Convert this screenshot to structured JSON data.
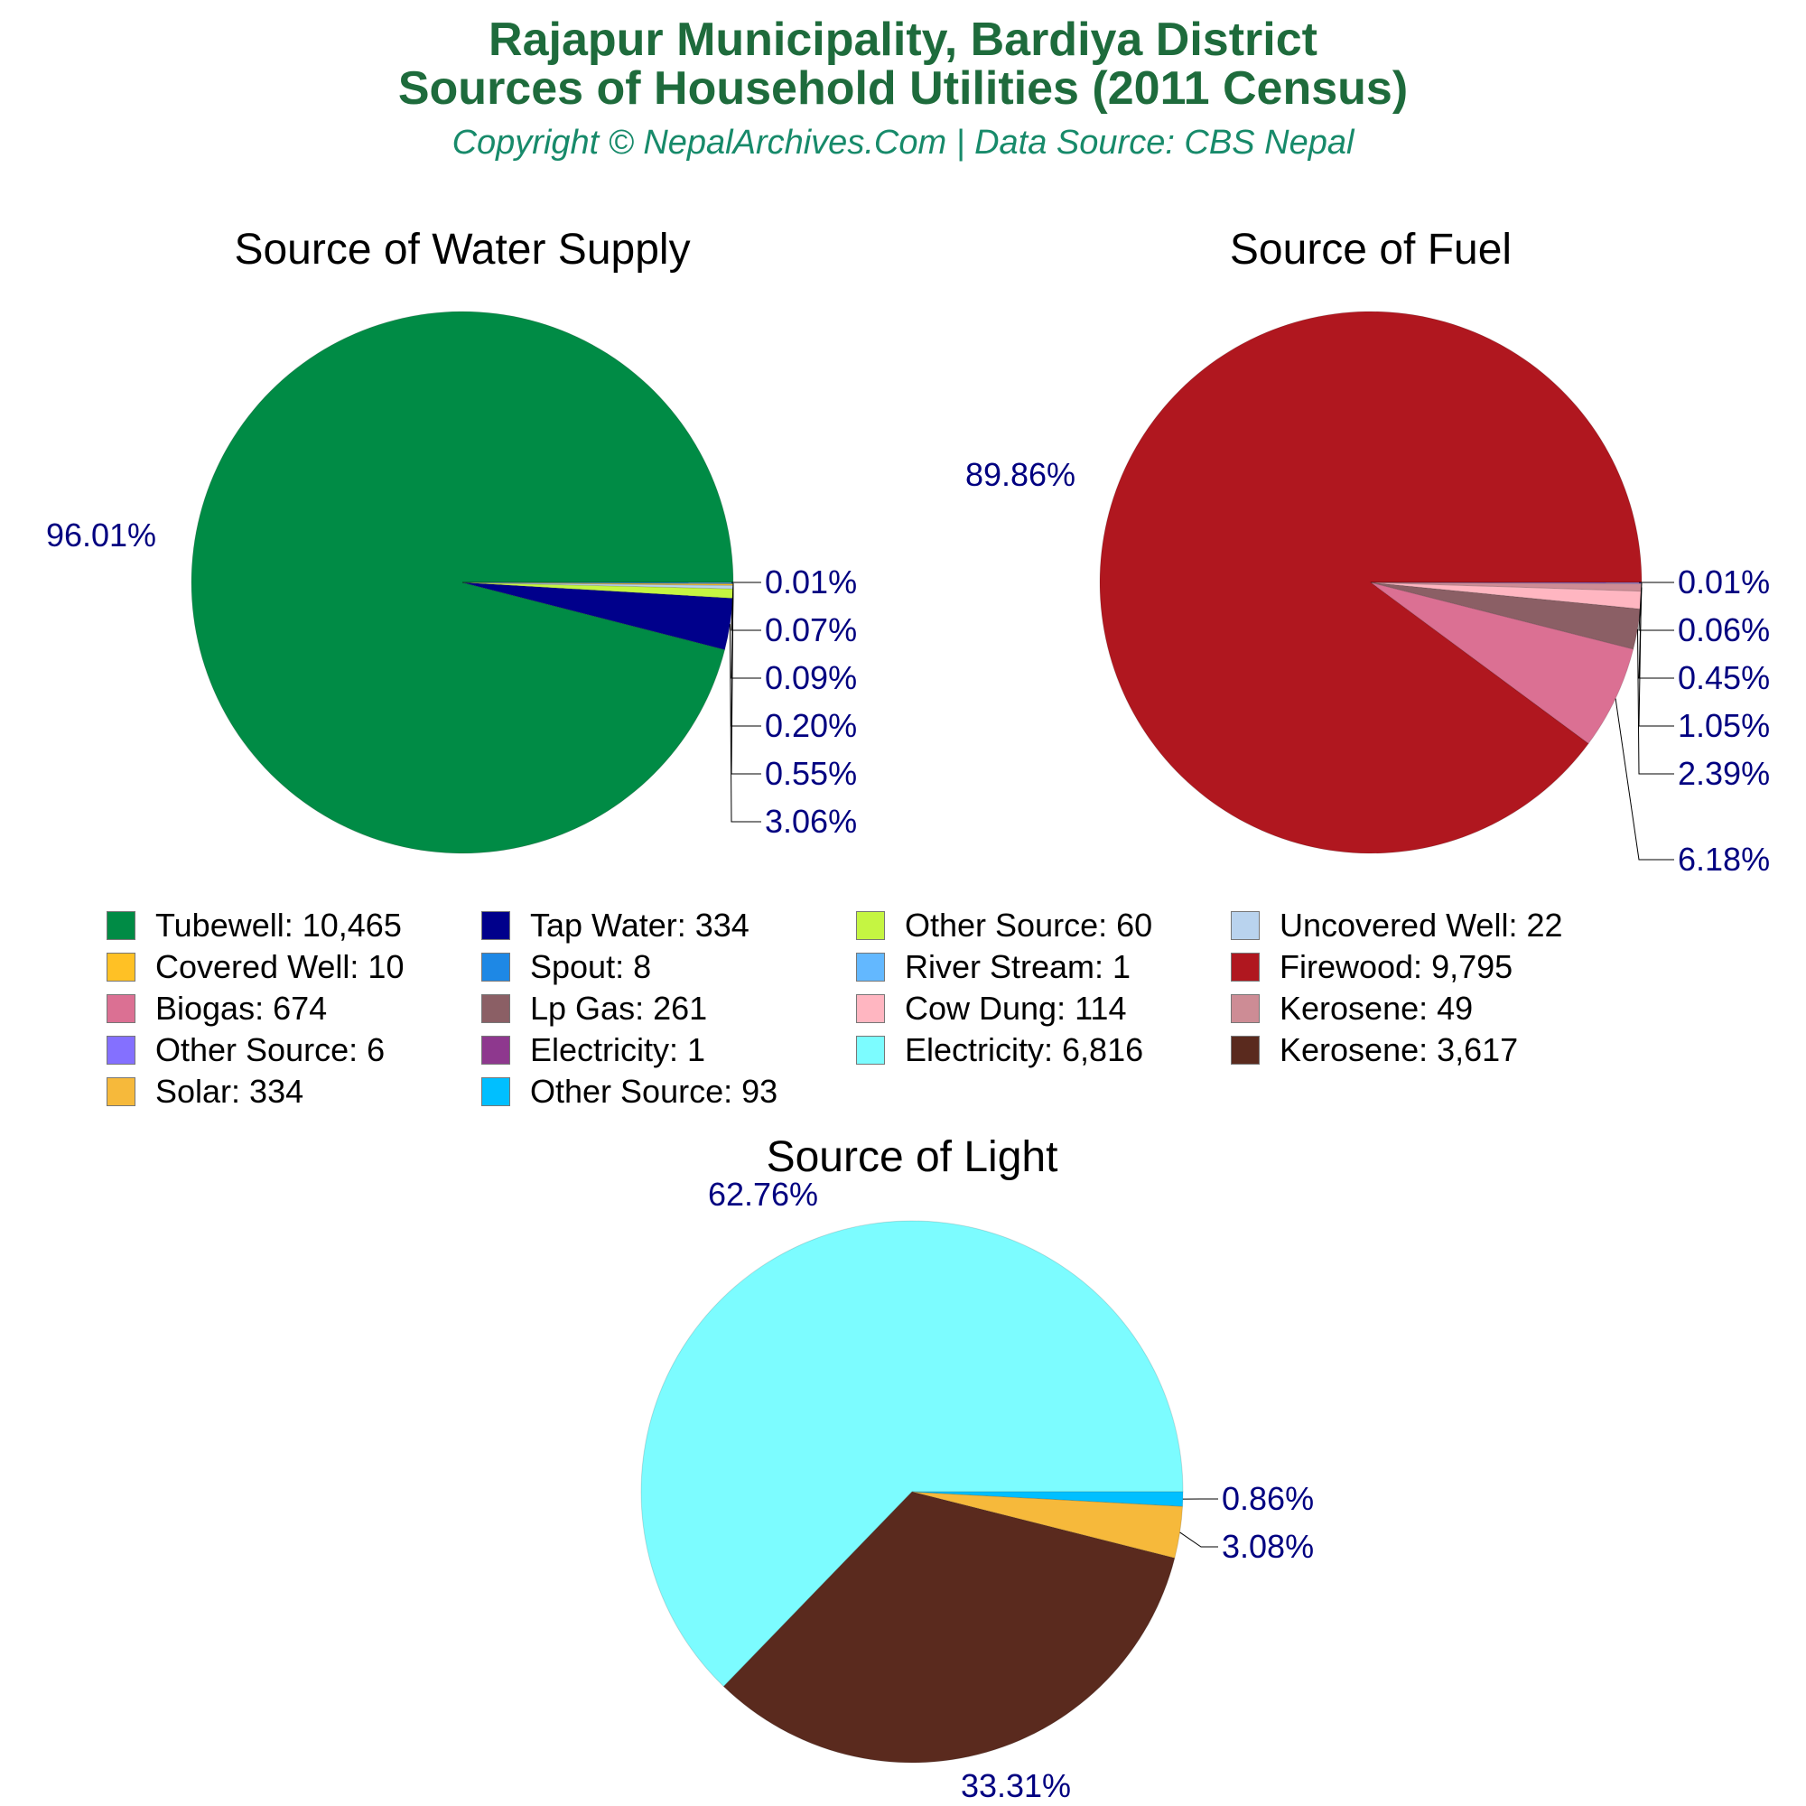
{
  "header": {
    "title_line1": "Rajapur Municipality, Bardiya District",
    "title_line2": "Sources of Household Utilities (2011 Census)",
    "subtitle": "Copyright © NepalArchives.Com | Data Source: CBS Nepal"
  },
  "chart_data": [
    {
      "type": "pie",
      "title": "Source of Water Supply",
      "slices": [
        {
          "name": "Tubewell",
          "value": 10465,
          "color": "#008b45",
          "pct": "96.01%"
        },
        {
          "name": "Tap Water",
          "value": 334,
          "color": "#00008b",
          "pct": "3.06%"
        },
        {
          "name": "Other Source",
          "value": 60,
          "color": "#c5f542",
          "pct": "0.55%"
        },
        {
          "name": "Uncovered Well",
          "value": 22,
          "color": "#b9d3ee",
          "pct": "0.20%"
        },
        {
          "name": "Covered Well",
          "value": 10,
          "color": "#ffc125",
          "pct": "0.09%"
        },
        {
          "name": "Spout",
          "value": 8,
          "color": "#1e88e5",
          "pct": "0.07%"
        },
        {
          "name": "River Stream",
          "value": 1,
          "color": "#63b8ff",
          "pct": "0.01%"
        }
      ]
    },
    {
      "type": "pie",
      "title": "Source of Fuel",
      "slices": [
        {
          "name": "Firewood",
          "value": 9795,
          "color": "#b0171f",
          "pct": "89.86%"
        },
        {
          "name": "Biogas",
          "value": 674,
          "color": "#db7093",
          "pct": "6.18%"
        },
        {
          "name": "Lp Gas",
          "value": 261,
          "color": "#8b5f65",
          "pct": "2.39%"
        },
        {
          "name": "Cow Dung",
          "value": 114,
          "color": "#ffb6c1",
          "pct": "1.05%"
        },
        {
          "name": "Kerosene",
          "value": 49,
          "color": "#cd8c95",
          "pct": "0.45%"
        },
        {
          "name": "Other Source",
          "value": 6,
          "color": "#8470ff",
          "pct": "0.06%"
        },
        {
          "name": "Electricity",
          "value": 1,
          "color": "#8e388e",
          "pct": "0.01%"
        }
      ]
    },
    {
      "type": "pie",
      "title": "Source of Light",
      "slices": [
        {
          "name": "Electricity",
          "value": 6816,
          "color": "#7cfcff",
          "pct": "62.76%"
        },
        {
          "name": "Kerosene",
          "value": 3617,
          "color": "#5a2a1e",
          "pct": "33.31%"
        },
        {
          "name": "Solar",
          "value": 334,
          "color": "#f6b93b",
          "pct": "3.08%"
        },
        {
          "name": "Other Source",
          "value": 93,
          "color": "#00bfff",
          "pct": "0.86%"
        }
      ]
    }
  ],
  "legend": [
    {
      "label": "Tubewell: 10,465",
      "color": "#008b45"
    },
    {
      "label": "Tap Water: 334",
      "color": "#00008b"
    },
    {
      "label": "Other Source: 60",
      "color": "#c5f542"
    },
    {
      "label": "Uncovered Well: 22",
      "color": "#b9d3ee"
    },
    {
      "label": "Covered Well: 10",
      "color": "#ffc125"
    },
    {
      "label": "Spout: 8",
      "color": "#1e88e5"
    },
    {
      "label": "River Stream: 1",
      "color": "#63b8ff"
    },
    {
      "label": "Firewood: 9,795",
      "color": "#b0171f"
    },
    {
      "label": "Biogas: 674",
      "color": "#db7093"
    },
    {
      "label": "Lp Gas: 261",
      "color": "#8b5f65"
    },
    {
      "label": "Cow Dung: 114",
      "color": "#ffb6c1"
    },
    {
      "label": "Kerosene: 49",
      "color": "#cd8c95"
    },
    {
      "label": "Other Source: 6",
      "color": "#8470ff"
    },
    {
      "label": "Electricity: 1",
      "color": "#8e388e"
    },
    {
      "label": "Electricity: 6,816",
      "color": "#7cfcff"
    },
    {
      "label": "Kerosene: 3,617",
      "color": "#5a2a1e"
    },
    {
      "label": "Solar: 334",
      "color": "#f6b93b"
    },
    {
      "label": "Other Source: 93",
      "color": "#00bfff"
    }
  ]
}
